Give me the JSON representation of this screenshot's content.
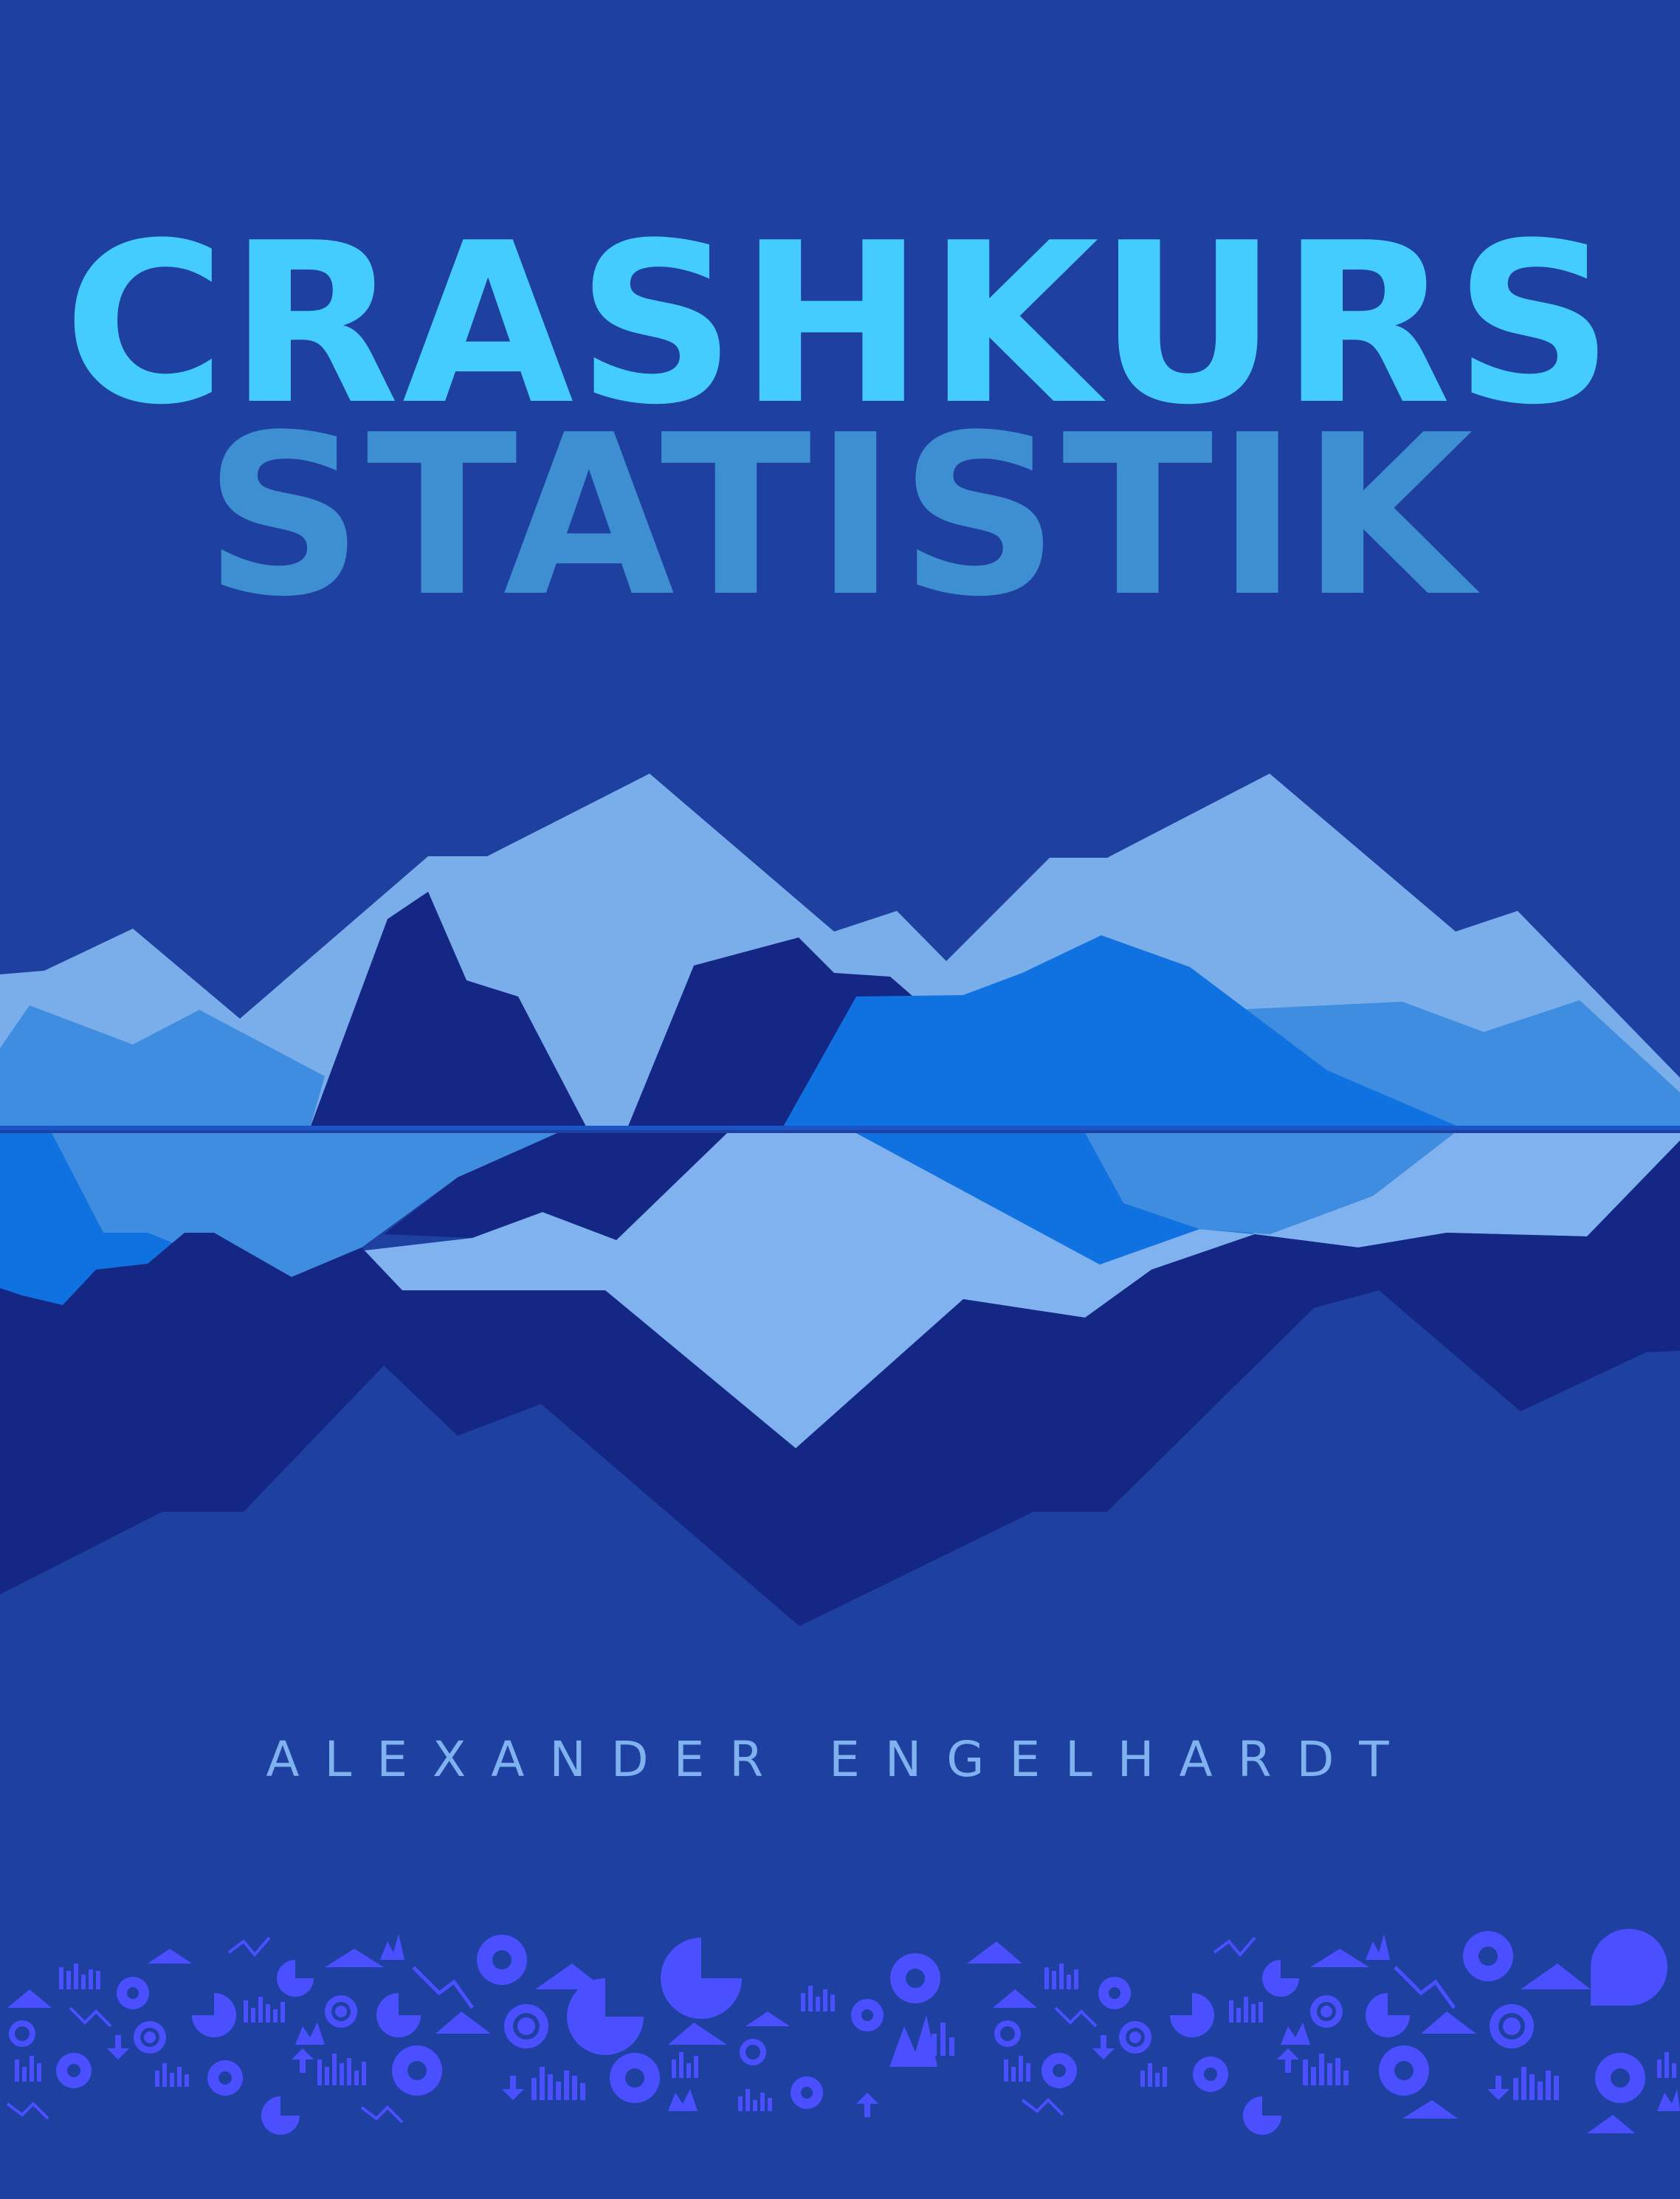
{
  "cover": {
    "title_line_1": "CRASHKURS",
    "title_line_2": "STATISTIK",
    "author": "ALEXANDER ENGELHARDT"
  },
  "colors": {
    "background": "#1e40a0",
    "title_line_1": "#44ccff",
    "title_line_2": "#3e8fd2",
    "author": "#7fb2ee",
    "mountain_light": "#7aaeea",
    "mountain_mid": "#3f8de0",
    "mountain_bright": "#0f72e0",
    "mountain_dark": "#152784",
    "icon_band": "#4a50ff"
  },
  "decorations": {
    "icon_band_icons": [
      "gear-icon",
      "bar-chart-icon",
      "pie-chart-icon",
      "award-star-icon",
      "line-chart-icon",
      "triangle-icon",
      "arrow-icon"
    ]
  }
}
